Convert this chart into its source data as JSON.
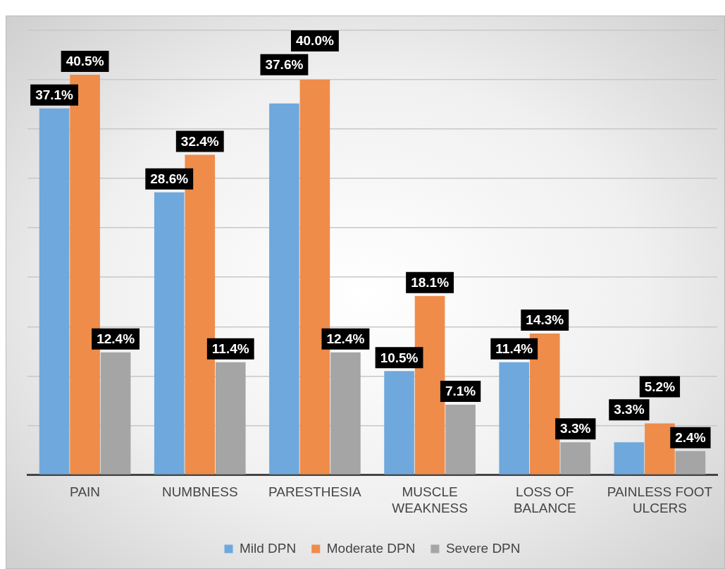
{
  "chart_data": {
    "type": "bar",
    "categories": [
      "PAIN",
      "NUMBNESS",
      "PARESTHESIA",
      "MUSCLE WEAKNESS",
      "LOSS OF BALANCE",
      "PAINLESS FOOT ULCERS"
    ],
    "series": [
      {
        "name": "Mild DPN",
        "color": "#6fa8dc",
        "values": [
          37.1,
          28.6,
          37.6,
          10.5,
          11.4,
          3.3
        ],
        "value_labels": [
          "37.1%",
          "28.6%",
          "37.6%",
          "10.5%",
          "11.4%",
          "3.3%"
        ]
      },
      {
        "name": "Moderate DPN",
        "color": "#ef8c4a",
        "values": [
          40.5,
          32.4,
          40.0,
          18.1,
          14.3,
          5.2
        ],
        "value_labels": [
          "40.5%",
          "32.4%",
          "40.0%",
          "18.1%",
          "14.3%",
          "5.2%"
        ]
      },
      {
        "name": "Severe DPN",
        "color": "#a5a5a5",
        "values": [
          12.4,
          11.4,
          12.4,
          7.1,
          3.3,
          2.4
        ],
        "value_labels": [
          "12.4%",
          "11.4%",
          "12.4%",
          "7.1%",
          "3.3%",
          "2.4%"
        ]
      }
    ],
    "ylim": [
      0,
      45
    ],
    "yticks": [
      {
        "value": 0,
        "label": null
      },
      {
        "value": 5,
        "label": null
      },
      {
        "value": 10,
        "label": null
      },
      {
        "value": 15,
        "label": null
      },
      {
        "value": 20,
        "label": null
      },
      {
        "value": 25,
        "label": null
      },
      {
        "value": 30,
        "label": null
      },
      {
        "value": 35,
        "label": null
      },
      {
        "value": 40,
        "label": null
      },
      {
        "value": 45,
        "label": null
      }
    ],
    "grid": "y",
    "legend": "bottom",
    "tick_labels": "x"
  }
}
